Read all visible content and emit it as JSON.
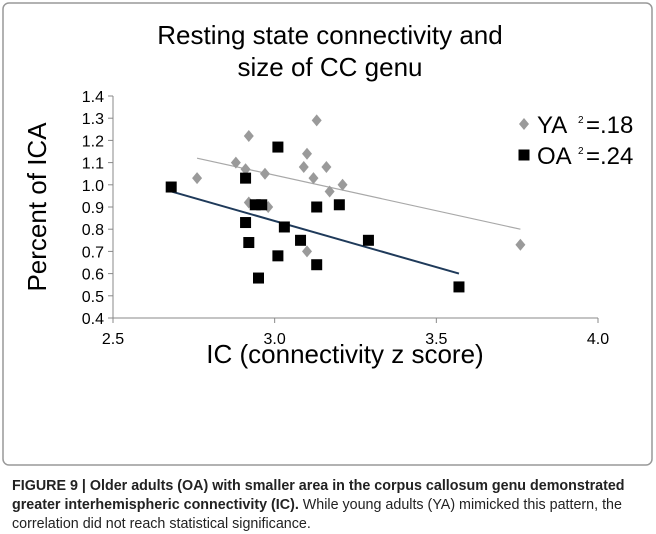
{
  "chart_data": {
    "type": "scatter",
    "title": [
      "Resting state connectivity and",
      "size of CC genu"
    ],
    "x_label": "IC (connectivity z score)",
    "y_label": "Percent of ICA",
    "xlim": [
      2.5,
      4.0
    ],
    "xticks": [
      {
        "value": 2.5,
        "label": "2.5"
      },
      {
        "value": 3.0,
        "label": "3.0"
      },
      {
        "value": 3.5,
        "label": "3.5"
      },
      {
        "value": 4.0,
        "label": "4.0"
      }
    ],
    "ylim": [
      0.4,
      1.4
    ],
    "yticks": [
      {
        "value": 0.4,
        "label": "0.4"
      },
      {
        "value": 0.5,
        "label": "0.5"
      },
      {
        "value": 0.6,
        "label": "0.6"
      },
      {
        "value": 0.7,
        "label": "0.7"
      },
      {
        "value": 0.8,
        "label": "0.8"
      },
      {
        "value": 0.9,
        "label": "0.9"
      },
      {
        "value": 1.0,
        "label": "1.0"
      },
      {
        "value": 1.1,
        "label": "1.1"
      },
      {
        "value": 1.2,
        "label": "1.2"
      },
      {
        "value": 1.3,
        "label": "1.3"
      },
      {
        "value": 1.4,
        "label": "1.4"
      }
    ],
    "series": [
      {
        "name": "YA",
        "marker": "diamond",
        "color": "#9a9a9a",
        "line_color": "#a8a8a8",
        "r2_sup": "2",
        "r2_text": "=.18",
        "x": [
          2.76,
          2.88,
          2.92,
          2.91,
          2.97,
          2.92,
          2.98,
          3.13,
          3.1,
          3.09,
          3.12,
          3.16,
          3.17,
          3.21,
          3.1,
          3.76
        ],
        "values": [
          1.03,
          1.1,
          1.22,
          1.07,
          1.05,
          0.92,
          0.9,
          1.29,
          1.14,
          1.08,
          1.03,
          1.08,
          0.97,
          1.0,
          0.7,
          0.73
        ],
        "trendline": {
          "x": [
            2.76,
            3.76
          ],
          "y": [
            1.12,
            0.8
          ]
        }
      },
      {
        "name": "OA",
        "marker": "square",
        "color": "#000000",
        "line_color": "#1f3a5a",
        "r2_sup": "2",
        "r2_text": "=.24",
        "x": [
          2.68,
          2.91,
          2.91,
          2.92,
          2.94,
          2.96,
          2.95,
          3.01,
          3.01,
          3.03,
          3.08,
          3.13,
          3.13,
          3.2,
          3.29,
          3.57
        ],
        "values": [
          0.99,
          1.03,
          0.83,
          0.74,
          0.91,
          0.91,
          0.58,
          0.68,
          1.17,
          0.81,
          0.75,
          0.64,
          0.9,
          0.91,
          0.75,
          0.54
        ],
        "trendline": {
          "x": [
            2.68,
            3.57
          ],
          "y": [
            0.97,
            0.6
          ]
        }
      }
    ]
  },
  "caption": {
    "bold": "FIGURE 9 | Older adults (OA) with smaller area in the corpus callosum genu demonstrated greater interhemispheric connectivity (IC).",
    "text": " While young adults (YA) mimicked this pattern, the correlation did not reach statistical significance."
  }
}
